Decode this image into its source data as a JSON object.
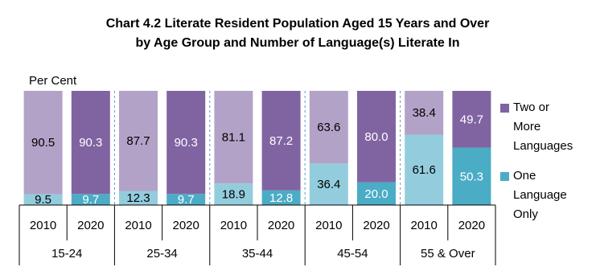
{
  "chart_data": {
    "type": "stacked_bar",
    "title": "Chart 4.2  Literate Resident Population Aged 15 Years and Over",
    "subtitle": "by Age Group and Number of Language(s) Literate In",
    "y_label": "Per Cent",
    "ylim": [
      0,
      100
    ],
    "groups": [
      "15-24",
      "25-34",
      "35-44",
      "45-54",
      "55 & Over"
    ],
    "categories": [
      "2010",
      "2020",
      "2010",
      "2020",
      "2010",
      "2020",
      "2010",
      "2020",
      "2010",
      "2020"
    ],
    "series": [
      {
        "name": "One Language Only",
        "color": "#4bacc6",
        "colors": [
          "#93cddd",
          "#4bacc6",
          "#93cddd",
          "#4bacc6",
          "#93cddd",
          "#4bacc6",
          "#93cddd",
          "#4bacc6",
          "#93cddd",
          "#4bacc6"
        ],
        "values": [
          9.5,
          9.7,
          12.3,
          9.7,
          18.9,
          12.8,
          36.4,
          20.0,
          61.6,
          50.3
        ],
        "value_labels": [
          "9.5",
          "9.7",
          "12.3",
          "9.7",
          "18.9",
          "12.8",
          "36.4",
          "20.0",
          "61.6",
          "50.3"
        ]
      },
      {
        "name": "Two or More Languages",
        "color": "#8064a2",
        "colors": [
          "#b3a2c7",
          "#8064a2",
          "#b3a2c7",
          "#8064a2",
          "#b3a2c7",
          "#8064a2",
          "#b3a2c7",
          "#8064a2",
          "#b3a2c7",
          "#8064a2"
        ],
        "values": [
          90.5,
          90.3,
          87.7,
          90.3,
          81.1,
          87.2,
          63.6,
          80.0,
          38.4,
          49.7
        ],
        "value_labels": [
          "90.5",
          "90.3",
          "87.7",
          "90.3",
          "81.1",
          "87.2",
          "63.6",
          "80.0",
          "38.4",
          "49.7"
        ]
      }
    ],
    "legend": "right"
  }
}
